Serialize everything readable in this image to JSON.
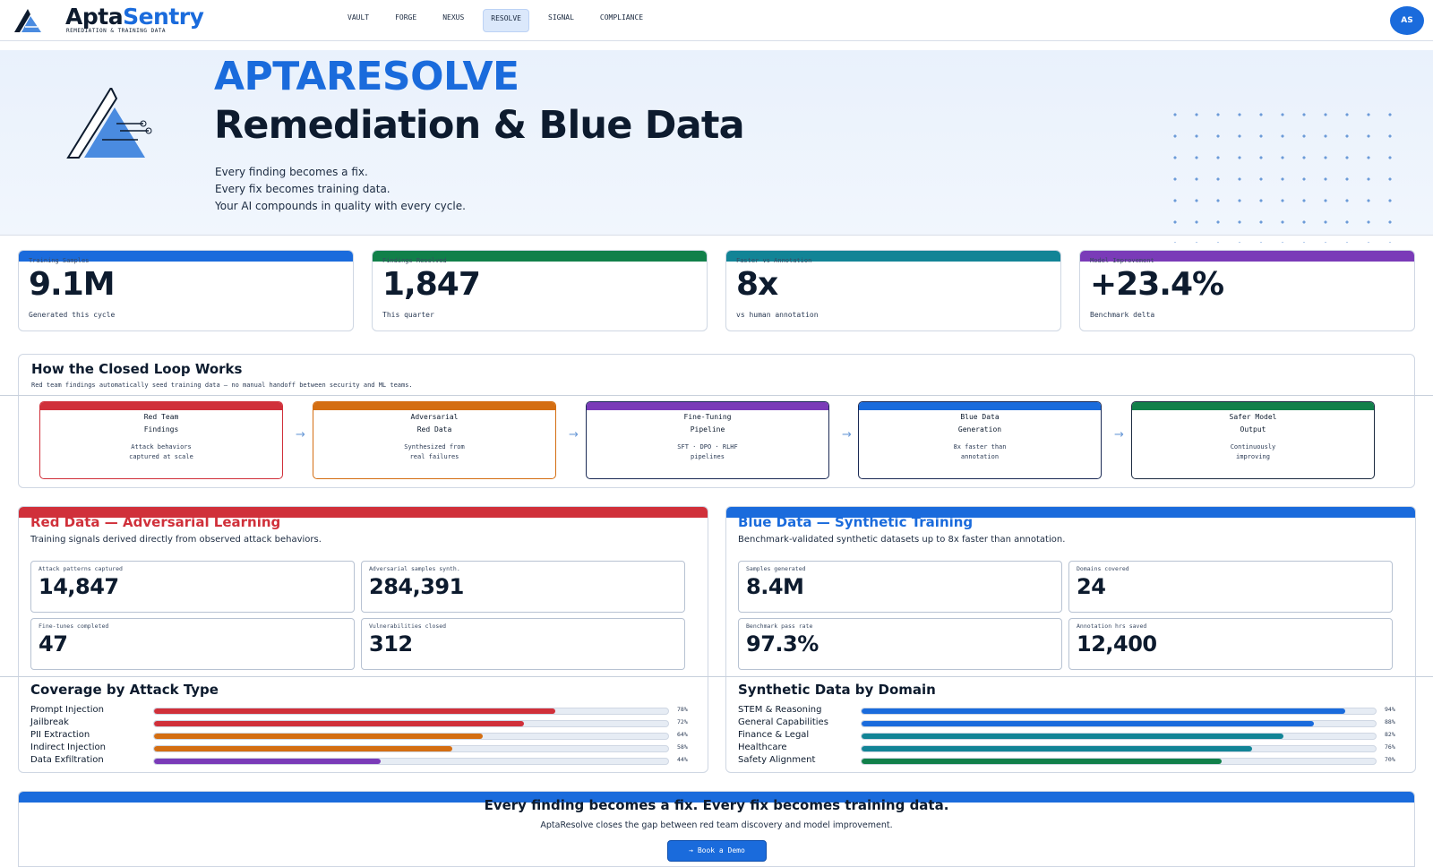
{
  "brand": {
    "name_a": "Apta",
    "name_b": "Sentry",
    "subtitle": "REMEDIATION & TRAINING DATA"
  },
  "nav": {
    "items": [
      "VAULT",
      "FORGE",
      "NEXUS",
      "RESOLVE",
      "SIGNAL",
      "COMPLIANCE"
    ],
    "active": "RESOLVE"
  },
  "user": {
    "initials": "AS"
  },
  "hero": {
    "kicker": "APTARESOLVE",
    "title": "Remediation & Blue Data",
    "lines": [
      "Every finding becomes a fix.",
      "Every fix becomes training data.",
      "Your AI compounds in quality with every cycle."
    ]
  },
  "stats": [
    {
      "label": "Training Samples",
      "value": "9.1M",
      "sub": "Generated this cycle",
      "color": "#1a6bdc"
    },
    {
      "label": "Findings Resolved",
      "value": "1,847",
      "sub": "This quarter",
      "color": "#11804a"
    },
    {
      "label": "Faster vs Annotation",
      "value": "8x",
      "sub": "vs human annotation",
      "color": "#128496"
    },
    {
      "label": "Model Improvement",
      "value": "+23.4%",
      "sub": "Benchmark delta",
      "color": "#7a3bb8"
    }
  ],
  "loop": {
    "title": "How the Closed Loop Works",
    "subtitle": "Red team findings automatically seed training data — no manual handoff between security and ML teams.",
    "steps": [
      {
        "title": "Red Team\nFindings",
        "desc": "Attack behaviors\ncaptured at scale",
        "color": "#d0303a"
      },
      {
        "title": "Adversarial\nRed Data",
        "desc": "Synthesized from\nreal failures",
        "color": "#d46e12"
      },
      {
        "title": "Fine-Tuning\nPipeline",
        "desc": "SFT · DPO · RLHF\npipelines",
        "color": "#7a3bb8"
      },
      {
        "title": "Blue Data\nGeneration",
        "desc": "8x faster than\nannotation",
        "color": "#1a6bdc"
      },
      {
        "title": "Safer Model\nOutput",
        "desc": "Continuously\nimproving",
        "color": "#11804a"
      }
    ],
    "arrow": "→"
  },
  "red": {
    "title_a": "Red Data",
    "dash": "—",
    "title_b": "Adversarial Learning",
    "desc": "Training signals derived directly from observed attack behaviors.",
    "metrics": [
      {
        "label": "Attack patterns captured",
        "value": "14,847"
      },
      {
        "label": "Adversarial samples synth.",
        "value": "284,391"
      },
      {
        "label": "Fine-tunes completed",
        "value": "47"
      },
      {
        "label": "Vulnerabilities closed",
        "value": "312"
      }
    ],
    "coverage_title": "Coverage by Attack Type",
    "bars": [
      {
        "label": "Prompt Injection",
        "pct": "78%",
        "value": 0.78,
        "color": "#d0303a"
      },
      {
        "label": "Jailbreak",
        "pct": "72%",
        "value": 0.72,
        "color": "#d0303a"
      },
      {
        "label": "PII Extraction",
        "pct": "64%",
        "value": 0.64,
        "color": "#d46e12"
      },
      {
        "label": "Indirect Injection",
        "pct": "58%",
        "value": 0.58,
        "color": "#d46e12"
      },
      {
        "label": "Data Exfiltration",
        "pct": "44%",
        "value": 0.44,
        "color": "#7a3bb8"
      }
    ]
  },
  "blue": {
    "title_a": "Blue Data",
    "dash": "—",
    "title_b": "Synthetic Training",
    "desc": "Benchmark-validated synthetic datasets up to 8x faster than annotation.",
    "metrics": [
      {
        "label": "Samples generated",
        "value": "8.4M"
      },
      {
        "label": "Domains covered",
        "value": "24"
      },
      {
        "label": "Benchmark pass rate",
        "value": "97.3%"
      },
      {
        "label": "Annotation hrs saved",
        "value": "12,400"
      }
    ],
    "coverage_title": "Synthetic Data by Domain",
    "bars": [
      {
        "label": "STEM & Reasoning",
        "pct": "94%",
        "value": 0.94,
        "color": "#1a6bdc"
      },
      {
        "label": "General Capabilities",
        "pct": "88%",
        "value": 0.88,
        "color": "#1a6bdc"
      },
      {
        "label": "Finance & Legal",
        "pct": "82%",
        "value": 0.82,
        "color": "#128496"
      },
      {
        "label": "Healthcare",
        "pct": "76%",
        "value": 0.76,
        "color": "#128496"
      },
      {
        "label": "Safety Alignment",
        "pct": "70%",
        "value": 0.7,
        "color": "#11804a"
      }
    ]
  },
  "cta": {
    "title": "Every finding becomes a fix. Every fix becomes training data.",
    "desc": "AptaResolve closes the gap between red team discovery and model improvement.",
    "button_arrow": "→",
    "button": "Book a Demo"
  },
  "colors": {
    "accent": "#1a6bdc",
    "red": "#d0303a",
    "ink": "#0d1b2e"
  }
}
